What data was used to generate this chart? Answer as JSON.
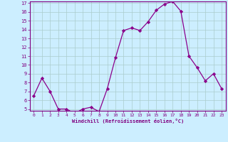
{
  "x": [
    0,
    1,
    2,
    3,
    4,
    5,
    6,
    7,
    8,
    9,
    10,
    11,
    12,
    13,
    14,
    15,
    16,
    17,
    18,
    19,
    20,
    21,
    22,
    23
  ],
  "y": [
    6.5,
    8.5,
    7.0,
    5.0,
    5.0,
    4.5,
    5.0,
    5.2,
    4.7,
    7.3,
    10.8,
    13.9,
    14.2,
    13.9,
    14.9,
    16.2,
    16.9,
    17.2,
    16.1,
    11.0,
    9.7,
    8.2,
    9.0,
    7.3
  ],
  "line_color": "#8B008B",
  "marker": "D",
  "marker_size": 2.2,
  "bg_color": "#cceeff",
  "grid_color": "#aacccc",
  "xlabel": "Windchill (Refroidissement éolien,°C)",
  "ylim": [
    5,
    17
  ],
  "xlim": [
    -0.5,
    23.5
  ],
  "yticks": [
    5,
    6,
    7,
    8,
    9,
    10,
    11,
    12,
    13,
    14,
    15,
    16,
    17
  ],
  "xticks": [
    0,
    1,
    2,
    3,
    4,
    5,
    6,
    7,
    8,
    9,
    10,
    11,
    12,
    13,
    14,
    15,
    16,
    17,
    18,
    19,
    20,
    21,
    22,
    23
  ],
  "axis_color": "#800080",
  "spine_color": "#800080"
}
